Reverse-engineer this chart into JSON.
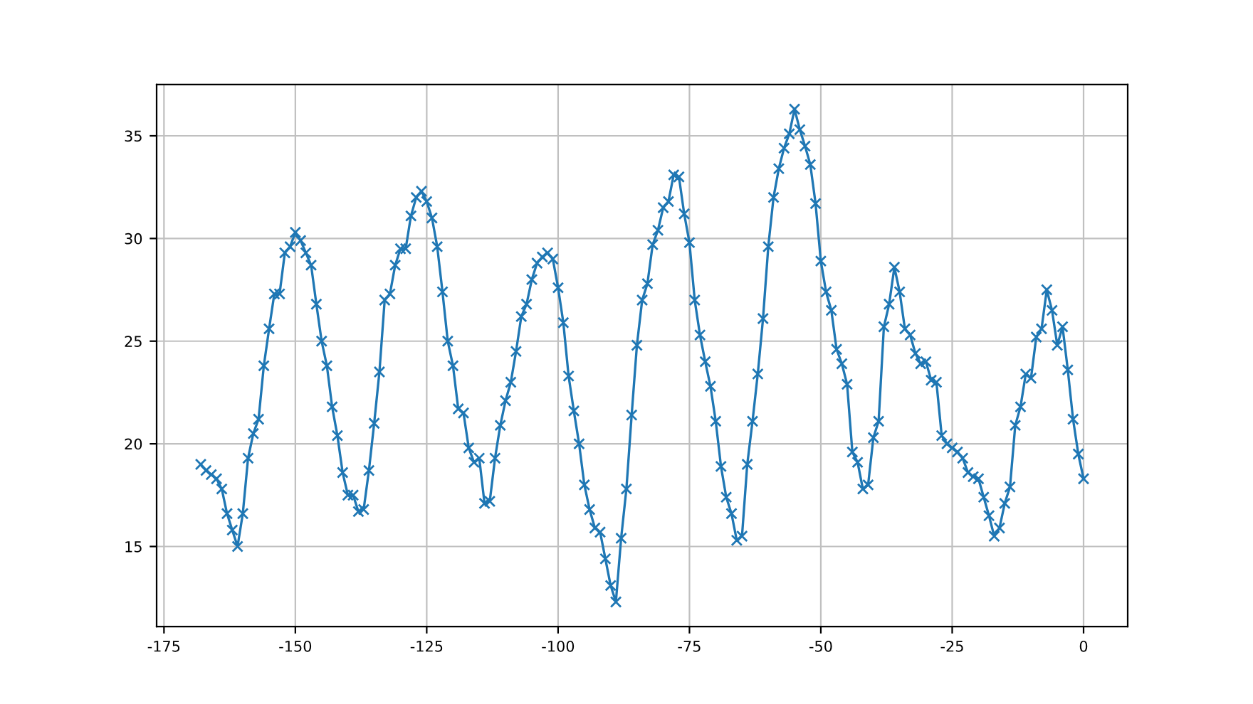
{
  "chart_data": {
    "type": "line",
    "marker": "cross",
    "grid": true,
    "x": [
      -168,
      -167,
      -166,
      -165,
      -164,
      -163,
      -162,
      -161,
      -160,
      -159,
      -158,
      -157,
      -156,
      -155,
      -154,
      -153,
      -152,
      -151,
      -150,
      -149,
      -148,
      -147,
      -146,
      -145,
      -144,
      -143,
      -142,
      -141,
      -140,
      -139,
      -138,
      -137,
      -136,
      -135,
      -134,
      -133,
      -132,
      -131,
      -130,
      -129,
      -128,
      -127,
      -126,
      -125,
      -124,
      -123,
      -122,
      -121,
      -120,
      -119,
      -118,
      -117,
      -116,
      -115,
      -114,
      -113,
      -112,
      -111,
      -110,
      -109,
      -108,
      -107,
      -106,
      -105,
      -104,
      -103,
      -102,
      -101,
      -100,
      -99,
      -98,
      -97,
      -96,
      -95,
      -94,
      -93,
      -92,
      -91,
      -90,
      -89,
      -88,
      -87,
      -86,
      -85,
      -84,
      -83,
      -82,
      -81,
      -80,
      -79,
      -78,
      -77,
      -76,
      -75,
      -74,
      -73,
      -72,
      -71,
      -70,
      -69,
      -68,
      -67,
      -66,
      -65,
      -64,
      -63,
      -62,
      -61,
      -60,
      -59,
      -58,
      -57,
      -56,
      -55,
      -54,
      -53,
      -52,
      -51,
      -50,
      -49,
      -48,
      -47,
      -46,
      -45,
      -44,
      -43,
      -42,
      -41,
      -40,
      -39,
      -38,
      -37,
      -36,
      -35,
      -34,
      -33,
      -32,
      -31,
      -30,
      -29,
      -28,
      -27,
      -26,
      -25,
      -24,
      -23,
      -22,
      -21,
      -20,
      -19,
      -18,
      -17,
      -16,
      -15,
      -14,
      -13,
      -12,
      -11,
      -10,
      -9,
      -8,
      -7,
      -6,
      -5,
      -4,
      -3,
      -2,
      -1,
      0
    ],
    "series": [
      {
        "color": "#1f77b4",
        "values": [
          19.0,
          18.7,
          18.5,
          18.3,
          17.8,
          16.6,
          15.8,
          15.0,
          16.6,
          19.3,
          20.5,
          21.2,
          23.8,
          25.6,
          27.3,
          27.3,
          29.3,
          29.6,
          30.3,
          29.9,
          29.3,
          28.7,
          26.8,
          25.0,
          23.8,
          21.8,
          20.4,
          18.6,
          17.5,
          17.5,
          16.7,
          16.8,
          18.7,
          21.0,
          23.5,
          27.0,
          27.3,
          28.7,
          29.5,
          29.5,
          31.1,
          32.0,
          32.3,
          31.8,
          31.0,
          29.6,
          27.4,
          25.0,
          23.8,
          21.7,
          21.5,
          19.8,
          19.1,
          19.3,
          17.1,
          17.2,
          19.3,
          20.9,
          22.1,
          23.0,
          24.5,
          26.2,
          26.8,
          28.0,
          28.8,
          29.1,
          29.3,
          29.0,
          27.6,
          25.9,
          23.3,
          21.6,
          20.0,
          18.0,
          16.8,
          15.9,
          15.7,
          14.4,
          13.1,
          12.3,
          15.4,
          17.8,
          21.4,
          24.8,
          27.0,
          27.8,
          29.7,
          30.4,
          31.5,
          31.8,
          33.1,
          33.0,
          31.2,
          29.8,
          27.0,
          25.3,
          24.0,
          22.8,
          21.1,
          18.9,
          17.4,
          16.6,
          15.3,
          15.5,
          19.0,
          21.1,
          23.4,
          26.1,
          29.6,
          32.0,
          33.4,
          34.4,
          35.1,
          36.3,
          35.3,
          34.5,
          33.6,
          31.7,
          28.9,
          27.4,
          26.5,
          24.6,
          23.9,
          22.9,
          19.6,
          19.1,
          17.8,
          18.0,
          20.3,
          21.1,
          25.7,
          26.8,
          28.6,
          27.4,
          25.6,
          25.3,
          24.4,
          23.9,
          24.0,
          23.1,
          23.0,
          20.4,
          20.0,
          19.8,
          19.6,
          19.3,
          18.6,
          18.4,
          18.3,
          17.4,
          16.5,
          15.5,
          15.9,
          17.1,
          17.9,
          20.9,
          21.8,
          23.4,
          23.2,
          25.2,
          25.6,
          27.5,
          26.5,
          24.8,
          25.7,
          23.6,
          21.2,
          19.5,
          18.3
        ]
      }
    ],
    "xlim": [
      -176.4,
      8.4
    ],
    "xticks": [
      -175,
      -150,
      -125,
      -100,
      -75,
      -50,
      -25,
      0
    ],
    "ylim": [
      11.1,
      37.5
    ],
    "yticks": [
      15,
      20,
      25,
      30,
      35
    ]
  }
}
